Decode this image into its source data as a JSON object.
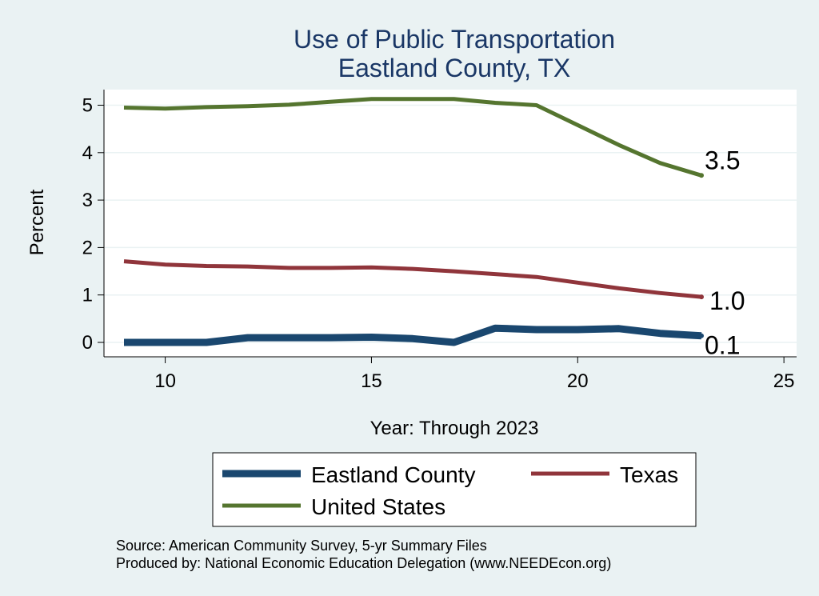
{
  "chart_data": {
    "type": "line",
    "title": [
      "Use of Public Transportation",
      "Eastland County, TX"
    ],
    "xlabel": "Year: Through 2023",
    "ylabel": "Percent",
    "xlim": [
      9,
      25
    ],
    "ylim": [
      -0.3,
      5.3
    ],
    "xticks": [
      10,
      15,
      20,
      25
    ],
    "yticks": [
      0,
      1,
      2,
      3,
      4,
      5
    ],
    "grid": "horizontal",
    "legend_placement": "bottom",
    "series": [
      {
        "name": "Eastland County",
        "color": "#1a476f",
        "x": [
          9,
          10,
          11,
          12,
          13,
          14,
          15,
          16,
          17,
          18,
          19,
          20,
          21,
          22,
          23
        ],
        "values": [
          0.0,
          0.0,
          0.0,
          0.1,
          0.1,
          0.1,
          0.11,
          0.08,
          0.0,
          0.3,
          0.27,
          0.27,
          0.29,
          0.19,
          0.14
        ],
        "end_label": "0.1"
      },
      {
        "name": "Texas",
        "color": "#90353b",
        "x": [
          9,
          10,
          11,
          12,
          13,
          14,
          15,
          16,
          17,
          18,
          19,
          20,
          21,
          22,
          23
        ],
        "values": [
          1.71,
          1.64,
          1.61,
          1.6,
          1.57,
          1.57,
          1.58,
          1.55,
          1.5,
          1.44,
          1.38,
          1.26,
          1.14,
          1.04,
          0.96
        ],
        "end_label": "1.0"
      },
      {
        "name": "United States",
        "color": "#55752f",
        "x": [
          9,
          10,
          11,
          12,
          13,
          14,
          15,
          16,
          17,
          18,
          19,
          20,
          21,
          22,
          23
        ],
        "values": [
          4.95,
          4.93,
          4.96,
          4.98,
          5.01,
          5.07,
          5.13,
          5.13,
          5.13,
          5.05,
          5.0,
          4.58,
          4.16,
          3.78,
          3.52
        ],
        "end_label": "3.5"
      }
    ],
    "notes": [
      "Source: American Community Survey, 5-yr Summary Files",
      "Produced by: National Economic Education Delegation (www.NEEDEcon.org)"
    ]
  }
}
